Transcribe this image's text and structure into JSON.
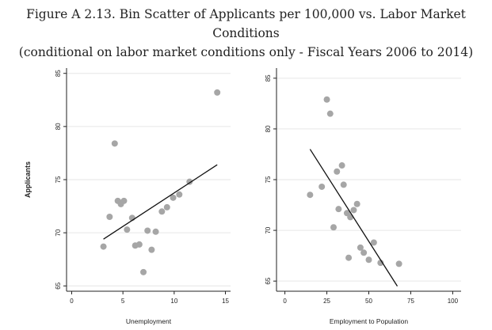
{
  "figure": {
    "title_line1": "Figure A 2.13. Bin Scatter of Applicants per 100,000 vs. Labor Market Conditions",
    "title_line2": "(conditional on labor market conditions only - Fiscal Years 2006 to 2014)"
  },
  "colors": {
    "point": "#a6a6a6",
    "line": "#111111",
    "grid": "#e6e6e6",
    "axis": "#222222"
  },
  "chart_data": [
    {
      "type": "scatter",
      "xlabel": "Unemployment",
      "ylabel": "Applicants",
      "xlim": [
        -0.5,
        15.5
      ],
      "ylim": [
        64.5,
        85.5
      ],
      "xticks": [
        0,
        5,
        10,
        15
      ],
      "yticks": [
        65,
        70,
        75,
        80,
        85
      ],
      "grid": true,
      "points": [
        {
          "x": 3.1,
          "y": 68.7
        },
        {
          "x": 3.7,
          "y": 71.5
        },
        {
          "x": 4.2,
          "y": 78.4
        },
        {
          "x": 4.5,
          "y": 73.0
        },
        {
          "x": 4.8,
          "y": 72.7
        },
        {
          "x": 5.1,
          "y": 73.0
        },
        {
          "x": 5.4,
          "y": 70.3
        },
        {
          "x": 5.9,
          "y": 71.4
        },
        {
          "x": 6.2,
          "y": 68.8
        },
        {
          "x": 6.6,
          "y": 68.9
        },
        {
          "x": 7.0,
          "y": 66.3
        },
        {
          "x": 7.4,
          "y": 70.2
        },
        {
          "x": 7.8,
          "y": 68.4
        },
        {
          "x": 8.2,
          "y": 70.1
        },
        {
          "x": 8.8,
          "y": 72.0
        },
        {
          "x": 9.3,
          "y": 72.4
        },
        {
          "x": 9.9,
          "y": 73.3
        },
        {
          "x": 10.5,
          "y": 73.6
        },
        {
          "x": 11.5,
          "y": 74.8
        },
        {
          "x": 14.2,
          "y": 83.2
        }
      ],
      "fit_line": {
        "x1": 3.1,
        "y1": 69.4,
        "x2": 14.2,
        "y2": 76.4
      }
    },
    {
      "type": "scatter",
      "xlabel": "Employment to Population",
      "ylabel": "",
      "xlim": [
        -5,
        105
      ],
      "ylim": [
        64,
        86
      ],
      "xticks": [
        0,
        25,
        50,
        75,
        100
      ],
      "yticks": [
        65,
        70,
        75,
        80,
        85
      ],
      "grid": true,
      "points": [
        {
          "x": 15,
          "y": 73.5
        },
        {
          "x": 22,
          "y": 74.3
        },
        {
          "x": 25,
          "y": 82.9
        },
        {
          "x": 27,
          "y": 81.5
        },
        {
          "x": 29,
          "y": 70.3
        },
        {
          "x": 31,
          "y": 75.8
        },
        {
          "x": 32,
          "y": 72.1
        },
        {
          "x": 34,
          "y": 76.4
        },
        {
          "x": 35,
          "y": 74.5
        },
        {
          "x": 37,
          "y": 71.7
        },
        {
          "x": 38,
          "y": 67.3
        },
        {
          "x": 39,
          "y": 71.3
        },
        {
          "x": 41,
          "y": 72.0
        },
        {
          "x": 43,
          "y": 72.6
        },
        {
          "x": 45,
          "y": 68.3
        },
        {
          "x": 47,
          "y": 67.8
        },
        {
          "x": 50,
          "y": 67.1
        },
        {
          "x": 53,
          "y": 68.8
        },
        {
          "x": 57,
          "y": 66.8
        },
        {
          "x": 68,
          "y": 66.7
        }
      ],
      "fit_line": {
        "x1": 15,
        "y1": 78.0,
        "x2": 67,
        "y2": 64.5
      }
    }
  ]
}
